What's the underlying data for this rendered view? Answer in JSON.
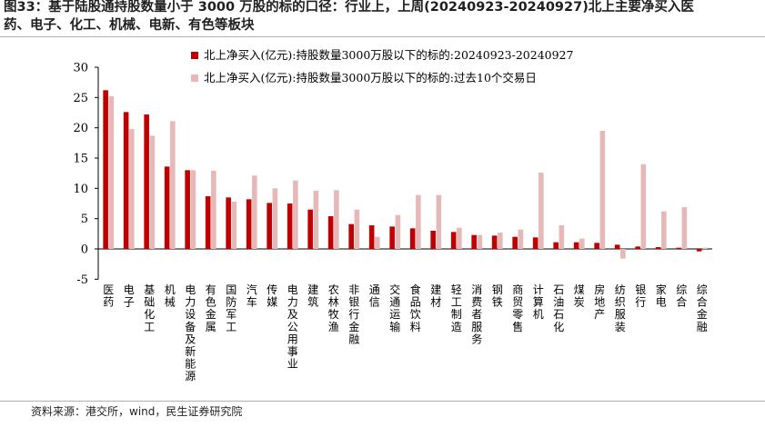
{
  "title_lines": [
    "图33：基于陆股通持股数量小于 3000 万股的标的口径：行业上，上周(20240923-20240927)北上主要净买入医",
    "药、电子、化工、机械、电新、有色等板块"
  ],
  "source": "资料来源：港交所，wind，民生证券研究院",
  "colors": {
    "series1": "#c00000",
    "series2": "#e6b8b8",
    "axis": "#000000"
  },
  "chart_data": {
    "type": "bar",
    "categories": [
      "医药",
      "电子",
      "基础化工",
      "机械",
      "电力设备及新能源",
      "有色金属",
      "国防军工",
      "汽车",
      "传媒",
      "电力及公用事业",
      "建筑",
      "农林牧渔",
      "非银行金融",
      "通信",
      "交通运输",
      "食品饮料",
      "建材",
      "轻工制造",
      "消费者服务",
      "钢铁",
      "商贸零售",
      "计算机",
      "石油石化",
      "煤炭",
      "房地产",
      "纺织服装",
      "银行",
      "家电",
      "综合",
      "综合金融"
    ],
    "series": [
      {
        "name": "北上净买入(亿元):持股数量3000万股以下的标的:20240923-20240927",
        "values": [
          26.2,
          22.6,
          22.2,
          13.6,
          13.0,
          8.7,
          8.5,
          8.2,
          7.6,
          7.5,
          6.5,
          5.4,
          4.1,
          3.9,
          3.7,
          3.4,
          3.0,
          2.8,
          2.3,
          2.2,
          2.0,
          1.9,
          1.1,
          1.1,
          1.0,
          0.7,
          0.4,
          0.3,
          0.2,
          -0.4
        ]
      },
      {
        "name": "北上净买入(亿元):持股数量3000万股以下的标的:过去10个交易日",
        "values": [
          25.2,
          19.8,
          18.7,
          21.1,
          13.0,
          12.9,
          7.8,
          12.1,
          10.0,
          11.3,
          9.6,
          9.7,
          6.5,
          2.0,
          5.6,
          8.9,
          8.9,
          3.5,
          2.3,
          2.7,
          3.2,
          12.6,
          3.9,
          1.7,
          19.5,
          -1.6,
          14.0,
          6.2,
          6.9,
          0.2
        ]
      }
    ],
    "y_ticks": [
      "30",
      "25",
      "20",
      "15",
      "10",
      "5",
      "0",
      "-5"
    ],
    "ylim": [
      -5,
      30
    ],
    "legend_position": "top"
  }
}
